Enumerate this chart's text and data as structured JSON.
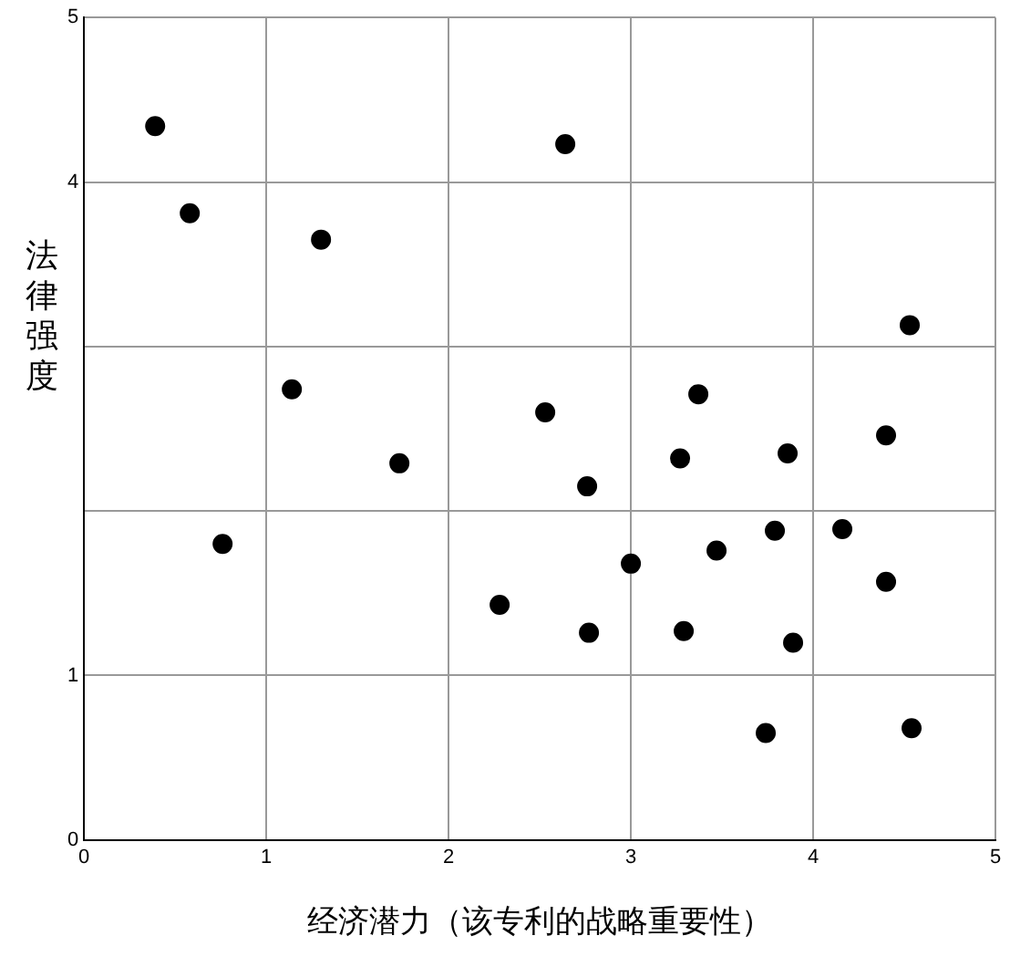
{
  "chart_data": {
    "type": "scatter",
    "xlabel": "经济潜力（该专利的战略重要性）",
    "ylabel": "法律强度",
    "x": [
      0.39,
      0.58,
      1.3,
      2.64,
      4.53,
      1.14,
      1.73,
      0.76,
      2.53,
      3.37,
      3.86,
      4.4,
      3.27,
      2.76,
      4.16,
      3.79,
      3.47,
      3.0,
      2.28,
      4.4,
      2.77,
      3.29,
      3.89,
      3.74,
      4.54
    ],
    "values": [
      4.34,
      3.81,
      3.65,
      4.23,
      3.13,
      2.74,
      2.29,
      1.8,
      2.6,
      2.71,
      2.35,
      2.46,
      2.32,
      2.15,
      1.89,
      1.88,
      1.76,
      1.68,
      1.43,
      1.57,
      1.26,
      1.27,
      1.2,
      0.65,
      0.68
    ],
    "color": "#000000",
    "marker": "circle",
    "xlim": [
      0,
      5
    ],
    "xticks": [
      0,
      1,
      2,
      3,
      4,
      5
    ],
    "ylim": [
      0,
      5
    ],
    "yticks": [
      0,
      1,
      {
        "value": 2,
        "label": null
      },
      {
        "value": 3,
        "label": null
      },
      4,
      5
    ],
    "grid": true,
    "legend": false
  }
}
